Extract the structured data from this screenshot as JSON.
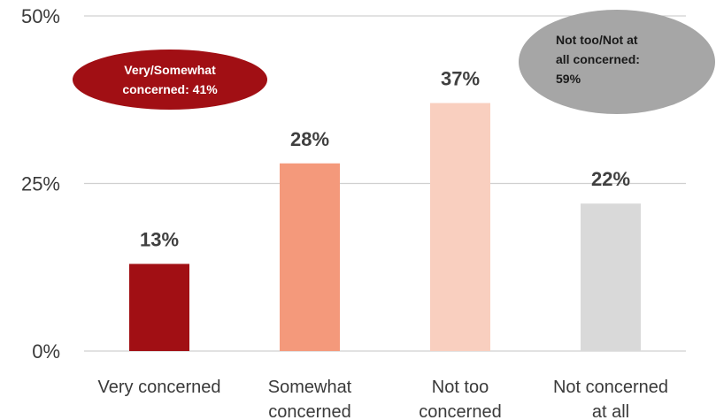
{
  "chart_data": {
    "type": "bar",
    "categories": [
      [
        "Very concerned"
      ],
      [
        "Somewhat",
        "concerned"
      ],
      [
        "Not too",
        "concerned"
      ],
      [
        "Not concerned",
        "at all"
      ]
    ],
    "values": [
      13,
      28,
      37,
      22
    ],
    "data_labels": [
      "13%",
      "28%",
      "37%",
      "22%"
    ],
    "bar_colors": [
      "#a10f14",
      "#f4997b",
      "#f9cfbf",
      "#d9d9d9"
    ],
    "ylim": [
      0,
      50
    ],
    "yticks": [
      {
        "value": 0,
        "label": "0%"
      },
      {
        "value": 25,
        "label": "25%"
      },
      {
        "value": 50,
        "label": "50%"
      }
    ],
    "grid": true,
    "annotations": [
      {
        "lines": [
          "Very/Somewhat",
          "concerned: 41%"
        ],
        "fill": "#a10f14",
        "text_color": "#ffffff"
      },
      {
        "lines": [
          "Not too/Not at",
          "all concerned:",
          "59%"
        ],
        "fill": "#a6a6a6",
        "text_color": "#1a1a1a"
      }
    ]
  }
}
